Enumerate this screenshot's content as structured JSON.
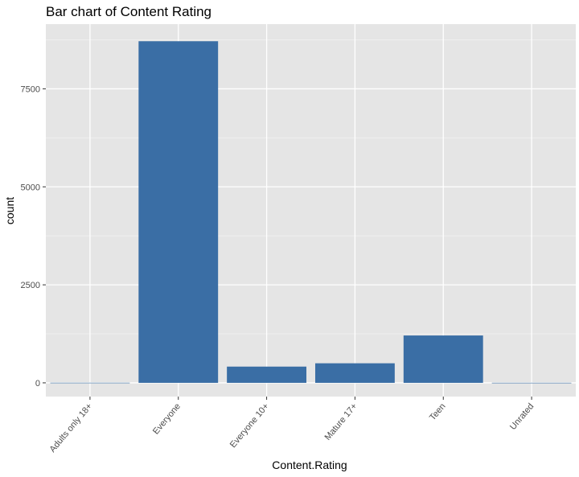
{
  "chart_data": {
    "type": "bar",
    "title": "Bar chart of Content Rating",
    "xlabel": "Content.Rating",
    "ylabel": "count",
    "categories": [
      "Adults only 18+",
      "Everyone",
      "Everyone 10+",
      "Mature 17+",
      "Teen",
      "Unrated"
    ],
    "values": [
      3,
      8714,
      414,
      499,
      1208,
      2
    ],
    "ylim": [
      -350,
      9150
    ],
    "yticks": [
      0,
      2500,
      5000,
      7500
    ],
    "ytick_labels": [
      "0",
      "2500",
      "5000",
      "7500"
    ],
    "grid": true,
    "colors": {
      "bar": "#3A6EA5",
      "panel": "#E5E5E5",
      "grid_major": "#FFFFFF",
      "grid_minor": "#F2F2F2",
      "tick_text": "#4D4D4D"
    }
  }
}
